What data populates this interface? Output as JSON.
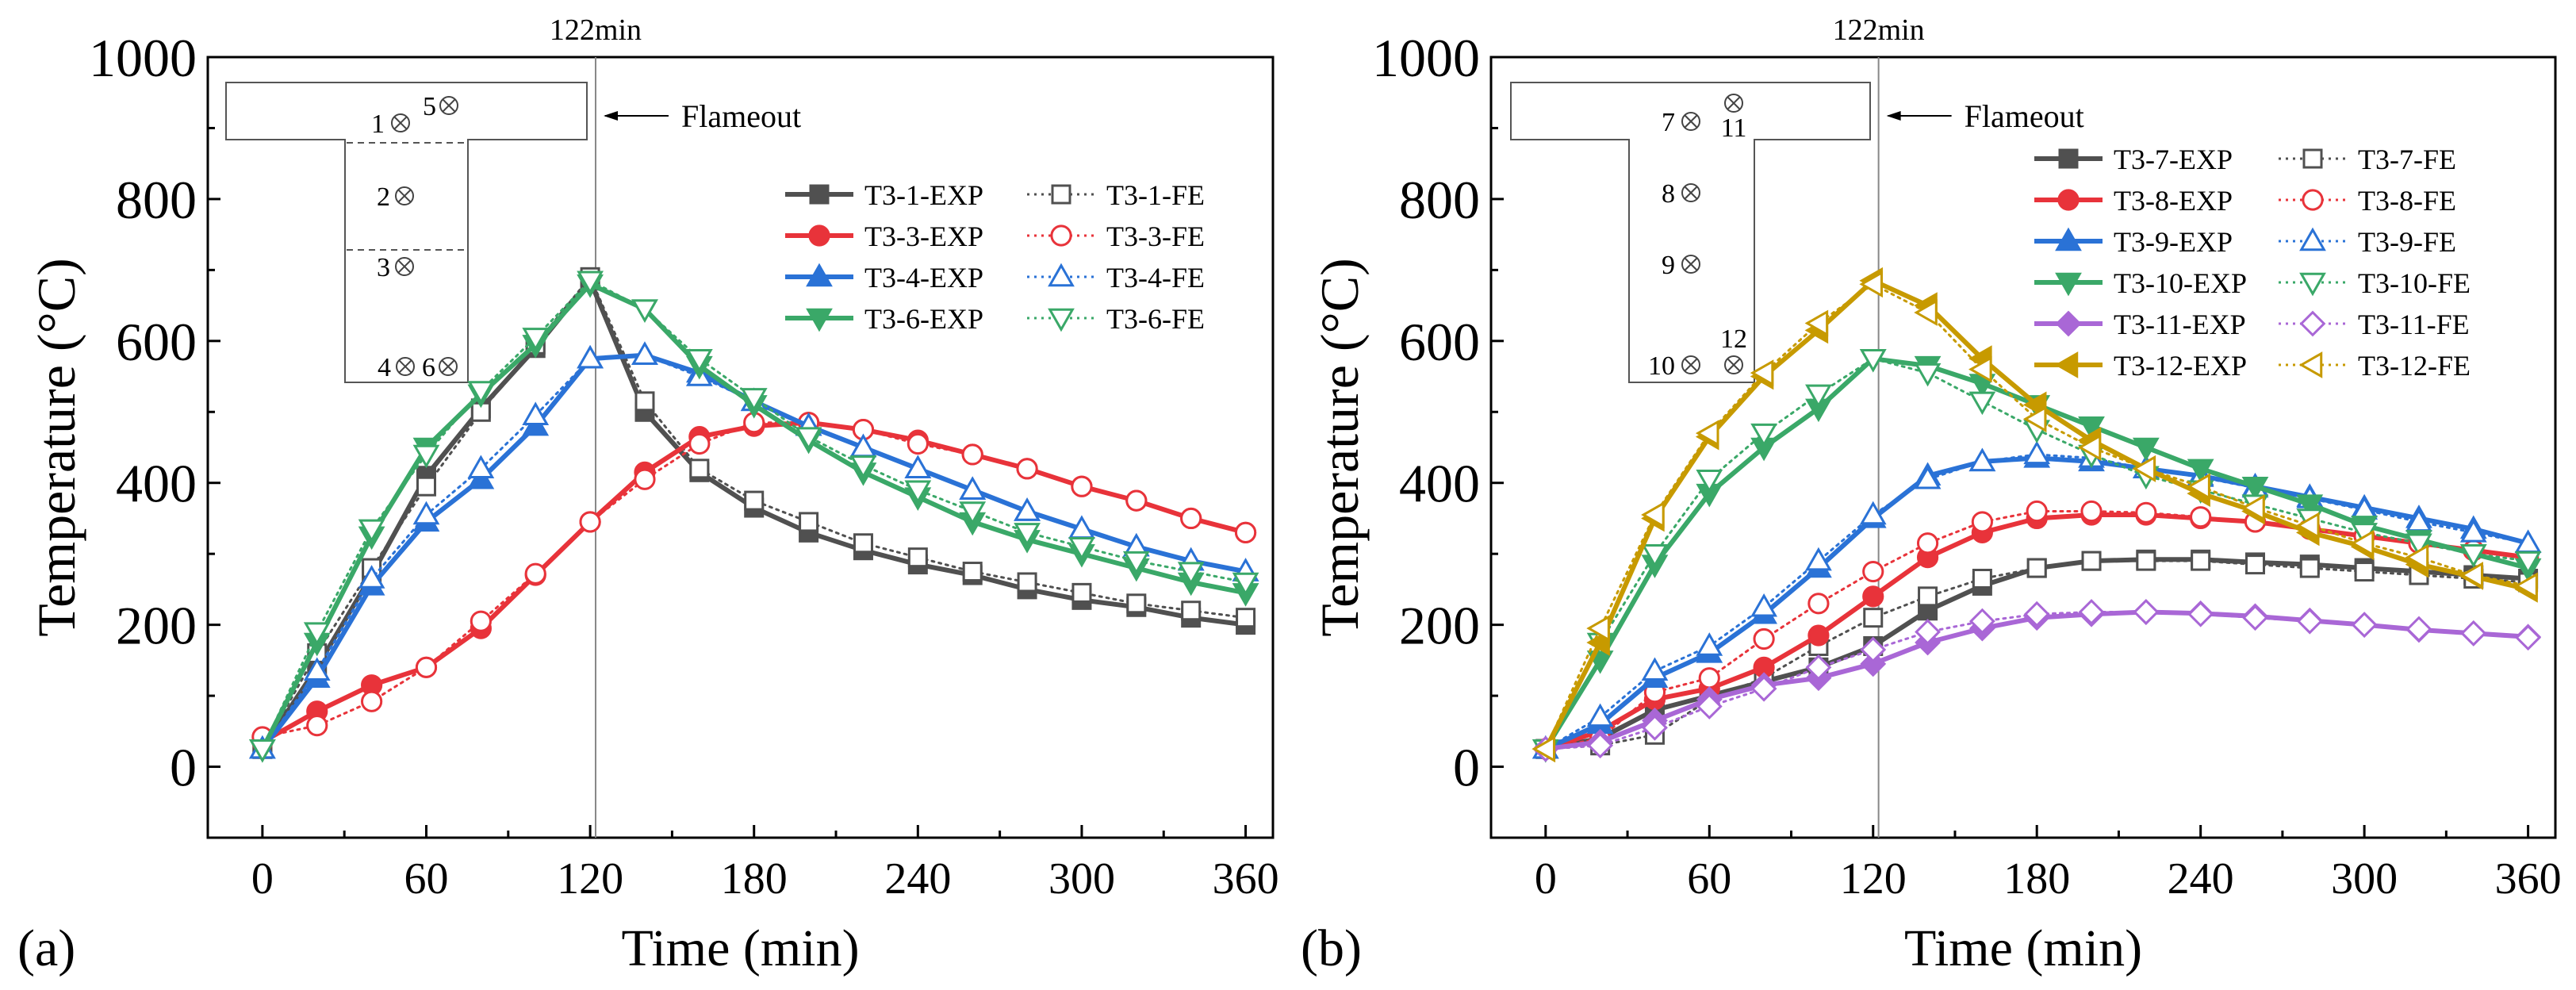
{
  "chart_data": [
    {
      "panel_label": "(a)",
      "type": "line",
      "xlabel": "Time (min)",
      "ylabel": "Temperature (°C)",
      "xlim": [
        -20,
        370
      ],
      "ylim": [
        -100,
        1000
      ],
      "xticks": [
        0,
        60,
        120,
        180,
        240,
        300,
        360
      ],
      "yticks": [
        0,
        200,
        400,
        600,
        800,
        1000
      ],
      "vline": {
        "x": 122,
        "label": "122min"
      },
      "annotation": "Flameout",
      "inset_labels": [
        "1",
        "5",
        "2",
        "3",
        "4",
        "6"
      ],
      "series": [
        {
          "name": "T3-1-EXP",
          "color": "#505050",
          "marker": "square",
          "filled": true,
          "style": "solid",
          "x": [
            0,
            20,
            40,
            60,
            80,
            100,
            120,
            140,
            160,
            180,
            200,
            220,
            240,
            260,
            280,
            300,
            320,
            340,
            360
          ],
          "y": [
            25,
            140,
            270,
            410,
            505,
            590,
            685,
            500,
            415,
            365,
            330,
            305,
            285,
            270,
            250,
            235,
            225,
            210,
            200
          ]
        },
        {
          "name": "T3-1-FE",
          "color": "#505050",
          "marker": "square",
          "filled": false,
          "style": "dotted",
          "x": [
            0,
            20,
            40,
            60,
            80,
            100,
            120,
            140,
            160,
            180,
            200,
            220,
            240,
            260,
            280,
            300,
            320,
            340,
            360
          ],
          "y": [
            25,
            160,
            280,
            395,
            500,
            595,
            690,
            515,
            420,
            375,
            345,
            315,
            295,
            275,
            260,
            245,
            230,
            220,
            210
          ]
        },
        {
          "name": "T3-3-EXP",
          "color": "#e8333a",
          "marker": "circle",
          "filled": true,
          "style": "solid",
          "x": [
            0,
            20,
            40,
            60,
            80,
            100,
            120,
            140,
            160,
            180,
            200,
            220,
            240,
            260,
            280,
            300,
            320,
            340,
            360
          ],
          "y": [
            35,
            78,
            115,
            140,
            195,
            270,
            345,
            415,
            465,
            480,
            485,
            475,
            460,
            440,
            420,
            395,
            375,
            350,
            330
          ]
        },
        {
          "name": "T3-3-FE",
          "color": "#e8333a",
          "marker": "circle",
          "filled": false,
          "style": "dotted",
          "x": [
            0,
            20,
            40,
            60,
            80,
            100,
            120,
            140,
            160,
            180,
            200,
            220,
            240,
            260,
            280,
            300,
            320,
            340,
            360
          ],
          "y": [
            42,
            58,
            92,
            140,
            205,
            272,
            345,
            405,
            455,
            485,
            485,
            475,
            455,
            440,
            420,
            395,
            375,
            350,
            330
          ]
        },
        {
          "name": "T3-4-EXP",
          "color": "#2a72d6",
          "marker": "triangle-up",
          "filled": true,
          "style": "solid",
          "x": [
            0,
            20,
            40,
            60,
            80,
            100,
            120,
            140,
            160,
            180,
            200,
            220,
            240,
            260,
            280,
            300,
            320,
            340,
            360
          ],
          "y": [
            25,
            125,
            255,
            345,
            405,
            480,
            575,
            580,
            555,
            515,
            480,
            450,
            420,
            390,
            360,
            335,
            310,
            290,
            275
          ]
        },
        {
          "name": "T3-4-FE",
          "color": "#2a72d6",
          "marker": "triangle-up",
          "filled": false,
          "style": "dotted",
          "x": [
            0,
            20,
            40,
            60,
            80,
            100,
            120,
            140,
            160,
            180,
            200,
            220,
            240,
            260,
            280,
            300,
            320,
            340,
            360
          ],
          "y": [
            25,
            135,
            265,
            355,
            420,
            495,
            575,
            580,
            550,
            515,
            480,
            450,
            420,
            390,
            360,
            335,
            310,
            290,
            275
          ]
        },
        {
          "name": "T3-6-EXP",
          "color": "#3aa868",
          "marker": "triangle-down",
          "filled": true,
          "style": "solid",
          "x": [
            0,
            20,
            40,
            60,
            80,
            100,
            120,
            140,
            160,
            180,
            200,
            220,
            240,
            260,
            280,
            300,
            320,
            340,
            360
          ],
          "y": [
            25,
            175,
            325,
            450,
            525,
            595,
            680,
            645,
            565,
            510,
            460,
            415,
            380,
            345,
            320,
            300,
            280,
            260,
            245
          ]
        },
        {
          "name": "T3-6-FE",
          "color": "#3aa868",
          "marker": "triangle-down",
          "filled": false,
          "style": "dotted",
          "x": [
            0,
            20,
            40,
            60,
            80,
            100,
            120,
            140,
            160,
            180,
            200,
            220,
            240,
            260,
            280,
            300,
            320,
            340,
            360
          ],
          "y": [
            25,
            190,
            335,
            440,
            530,
            605,
            685,
            645,
            575,
            520,
            465,
            425,
            390,
            360,
            330,
            310,
            290,
            275,
            260
          ]
        }
      ]
    },
    {
      "panel_label": "(b)",
      "type": "line",
      "xlabel": "Time (min)",
      "ylabel": "Temperature (°C)",
      "xlim": [
        -20,
        370
      ],
      "ylim": [
        -100,
        1000
      ],
      "xticks": [
        0,
        60,
        120,
        180,
        240,
        300,
        360
      ],
      "yticks": [
        0,
        200,
        400,
        600,
        800,
        1000
      ],
      "vline": {
        "x": 122,
        "label": "122min"
      },
      "annotation": "Flameout",
      "inset_labels": [
        "7",
        "11",
        "8",
        "9",
        "10",
        "12"
      ],
      "series": [
        {
          "name": "T3-7-EXP",
          "color": "#505050",
          "marker": "square",
          "filled": true,
          "style": "solid",
          "x": [
            0,
            20,
            40,
            60,
            80,
            100,
            120,
            140,
            160,
            180,
            200,
            220,
            240,
            260,
            280,
            300,
            320,
            340,
            360
          ],
          "y": [
            25,
            40,
            80,
            100,
            120,
            140,
            170,
            220,
            255,
            280,
            290,
            292,
            292,
            288,
            285,
            280,
            275,
            270,
            265
          ]
        },
        {
          "name": "T3-7-FE",
          "color": "#505050",
          "marker": "square",
          "filled": false,
          "style": "dotted",
          "x": [
            0,
            20,
            40,
            60,
            80,
            100,
            120,
            140,
            160,
            180,
            200,
            220,
            240,
            260,
            280,
            300,
            320,
            340,
            360
          ],
          "y": [
            25,
            30,
            45,
            95,
            125,
            170,
            210,
            240,
            265,
            280,
            290,
            290,
            290,
            285,
            280,
            275,
            270,
            265,
            260
          ]
        },
        {
          "name": "T3-8-EXP",
          "color": "#e8333a",
          "marker": "circle",
          "filled": true,
          "style": "solid",
          "x": [
            0,
            20,
            40,
            60,
            80,
            100,
            120,
            140,
            160,
            180,
            200,
            220,
            240,
            260,
            280,
            300,
            320,
            340,
            360
          ],
          "y": [
            25,
            50,
            95,
            110,
            140,
            185,
            240,
            295,
            330,
            350,
            355,
            355,
            350,
            345,
            335,
            325,
            315,
            305,
            295
          ]
        },
        {
          "name": "T3-8-FE",
          "color": "#e8333a",
          "marker": "circle",
          "filled": false,
          "style": "dotted",
          "x": [
            0,
            20,
            40,
            60,
            80,
            100,
            120,
            140,
            160,
            180,
            200,
            220,
            240,
            260,
            280,
            300,
            320,
            340,
            360
          ],
          "y": [
            25,
            40,
            105,
            125,
            180,
            230,
            275,
            315,
            345,
            360,
            360,
            358,
            352,
            345,
            335,
            325,
            315,
            305,
            295
          ]
        },
        {
          "name": "T3-9-EXP",
          "color": "#2a72d6",
          "marker": "triangle-up",
          "filled": true,
          "style": "solid",
          "x": [
            0,
            20,
            40,
            60,
            80,
            100,
            120,
            140,
            160,
            180,
            200,
            220,
            240,
            260,
            280,
            300,
            320,
            340,
            360
          ],
          "y": [
            25,
            60,
            125,
            160,
            215,
            280,
            350,
            410,
            430,
            435,
            430,
            420,
            410,
            395,
            380,
            365,
            350,
            335,
            315
          ]
        },
        {
          "name": "T3-9-FE",
          "color": "#2a72d6",
          "marker": "triangle-up",
          "filled": false,
          "style": "dotted",
          "x": [
            0,
            20,
            40,
            60,
            80,
            100,
            120,
            140,
            160,
            180,
            200,
            220,
            240,
            260,
            280,
            300,
            320,
            340,
            360
          ],
          "y": [
            25,
            70,
            135,
            170,
            225,
            290,
            355,
            405,
            430,
            440,
            435,
            420,
            408,
            393,
            378,
            362,
            345,
            330,
            315
          ]
        },
        {
          "name": "T3-10-EXP",
          "color": "#3aa868",
          "marker": "triangle-down",
          "filled": true,
          "style": "solid",
          "x": [
            0,
            20,
            40,
            60,
            80,
            100,
            120,
            140,
            160,
            180,
            200,
            220,
            240,
            260,
            280,
            300,
            320,
            340,
            360
          ],
          "y": [
            25,
            150,
            285,
            385,
            450,
            505,
            575,
            565,
            540,
            510,
            480,
            450,
            420,
            395,
            370,
            340,
            320,
            300,
            280
          ]
        },
        {
          "name": "T3-10-FE",
          "color": "#3aa868",
          "marker": "triangle-down",
          "filled": false,
          "style": "dotted",
          "x": [
            0,
            20,
            40,
            60,
            80,
            100,
            120,
            140,
            160,
            180,
            200,
            220,
            240,
            260,
            280,
            300,
            320,
            340,
            360
          ],
          "y": [
            25,
            175,
            300,
            405,
            470,
            525,
            575,
            555,
            515,
            475,
            440,
            410,
            390,
            370,
            350,
            330,
            315,
            300,
            290
          ]
        },
        {
          "name": "T3-11-EXP",
          "color": "#a967d6",
          "marker": "diamond",
          "filled": true,
          "style": "solid",
          "x": [
            0,
            20,
            40,
            60,
            80,
            100,
            120,
            140,
            160,
            180,
            200,
            220,
            240,
            260,
            280,
            300,
            320,
            340,
            360
          ],
          "y": [
            25,
            35,
            65,
            95,
            115,
            125,
            145,
            175,
            195,
            210,
            215,
            218,
            216,
            212,
            206,
            200,
            193,
            188,
            183
          ]
        },
        {
          "name": "T3-11-FE",
          "color": "#a967d6",
          "marker": "diamond",
          "filled": false,
          "style": "dotted",
          "x": [
            0,
            20,
            40,
            60,
            80,
            100,
            120,
            140,
            160,
            180,
            200,
            220,
            240,
            260,
            280,
            300,
            320,
            340,
            360
          ],
          "y": [
            25,
            30,
            55,
            85,
            110,
            140,
            165,
            190,
            205,
            215,
            218,
            218,
            215,
            210,
            205,
            200,
            194,
            188,
            182
          ]
        },
        {
          "name": "T3-12-EXP",
          "color": "#c79a00",
          "marker": "triangle-left",
          "filled": true,
          "style": "solid",
          "x": [
            0,
            20,
            40,
            60,
            80,
            100,
            120,
            140,
            160,
            180,
            200,
            220,
            240,
            260,
            280,
            300,
            320,
            340,
            360
          ],
          "y": [
            25,
            175,
            350,
            465,
            550,
            615,
            685,
            650,
            575,
            510,
            460,
            420,
            385,
            360,
            330,
            310,
            285,
            268,
            250
          ]
        },
        {
          "name": "T3-12-FE",
          "color": "#c79a00",
          "marker": "triangle-left",
          "filled": false,
          "style": "dotted",
          "x": [
            0,
            20,
            40,
            60,
            80,
            100,
            120,
            140,
            160,
            180,
            200,
            220,
            240,
            260,
            280,
            300,
            320,
            340,
            360
          ],
          "y": [
            25,
            195,
            355,
            470,
            555,
            625,
            680,
            640,
            560,
            490,
            450,
            420,
            395,
            365,
            340,
            315,
            295,
            270,
            255
          ]
        }
      ]
    }
  ]
}
